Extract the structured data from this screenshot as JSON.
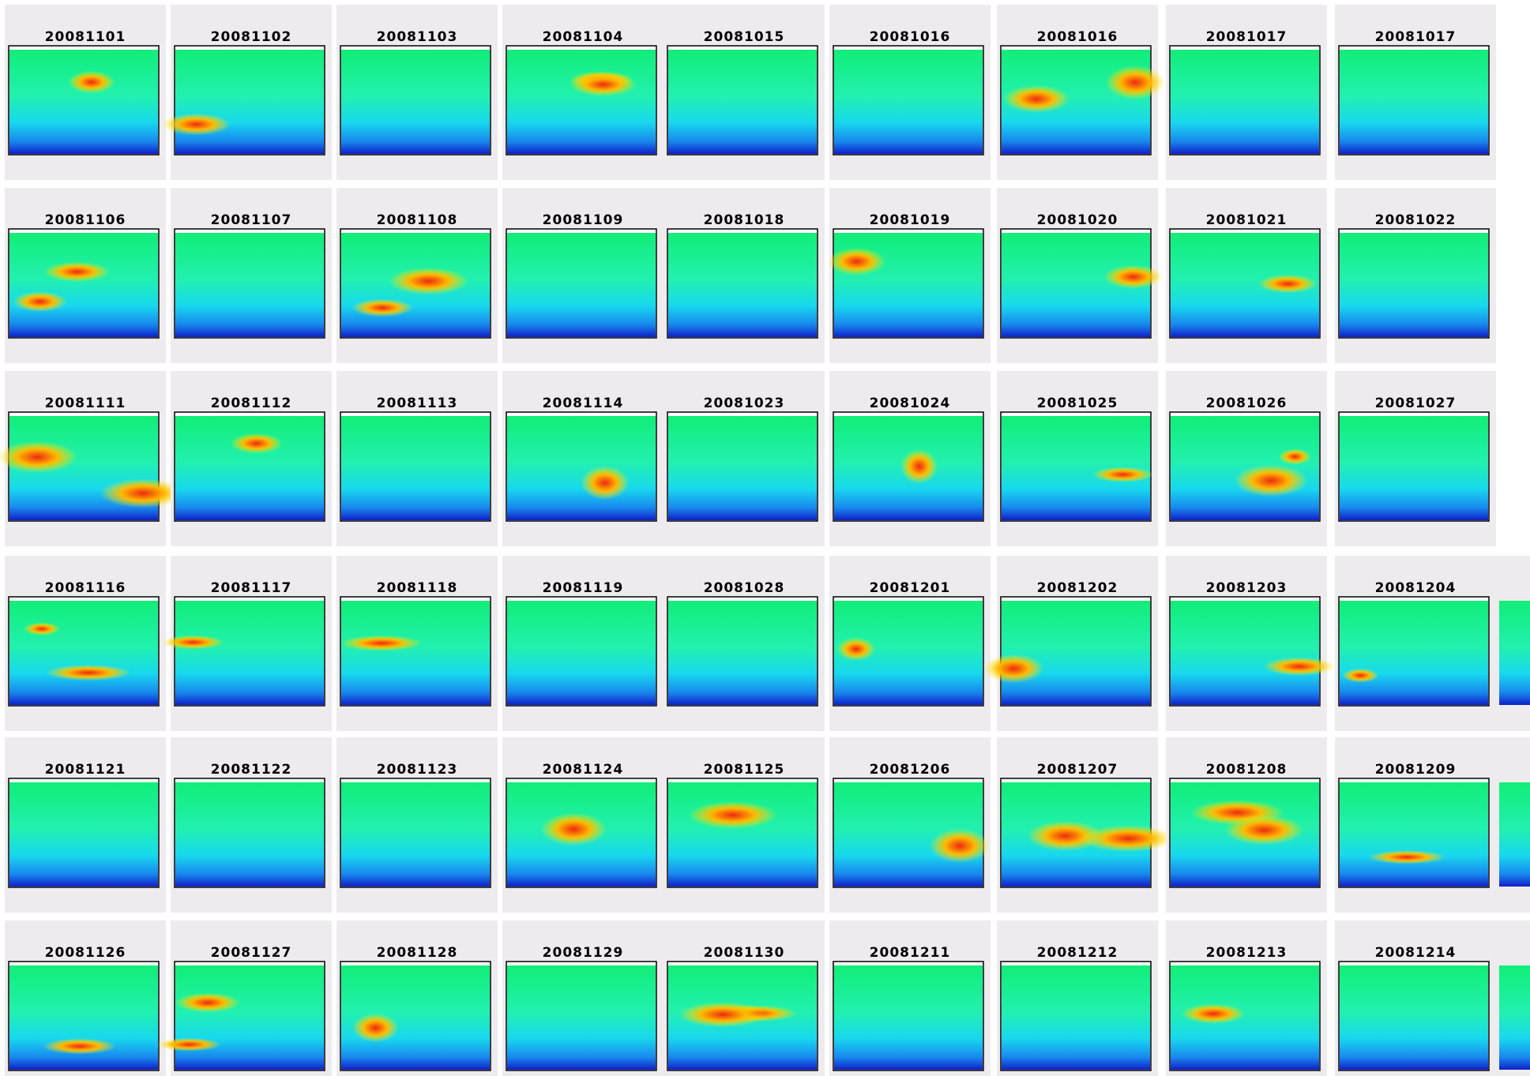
{
  "rows": [
    [
      "20081101",
      "20081102",
      "20081103",
      "20081104",
      "20081015",
      "20081016",
      "20081016",
      "20081017",
      "20081017"
    ],
    [
      "20081106",
      "20081107",
      "20081108",
      "20081109",
      "20081018",
      "20081019",
      "20081020",
      "20081021",
      "20081022"
    ],
    [
      "20081111",
      "20081112",
      "20081113",
      "20081114",
      "20081023",
      "20081024",
      "20081025",
      "20081026",
      "20081027"
    ],
    [
      "20081116",
      "20081117",
      "20081118",
      "20081119",
      "20081028",
      "20081201",
      "20081202",
      "20081203",
      "20081204"
    ],
    [
      "20081121",
      "20081122",
      "20081123",
      "20081124",
      "20081125",
      "20081206",
      "20081207",
      "20081208",
      "20081209"
    ],
    [
      "20081126",
      "20081127",
      "20081128",
      "20081129",
      "20081130",
      "20081211",
      "20081212",
      "20081213",
      "20081214"
    ]
  ]
}
